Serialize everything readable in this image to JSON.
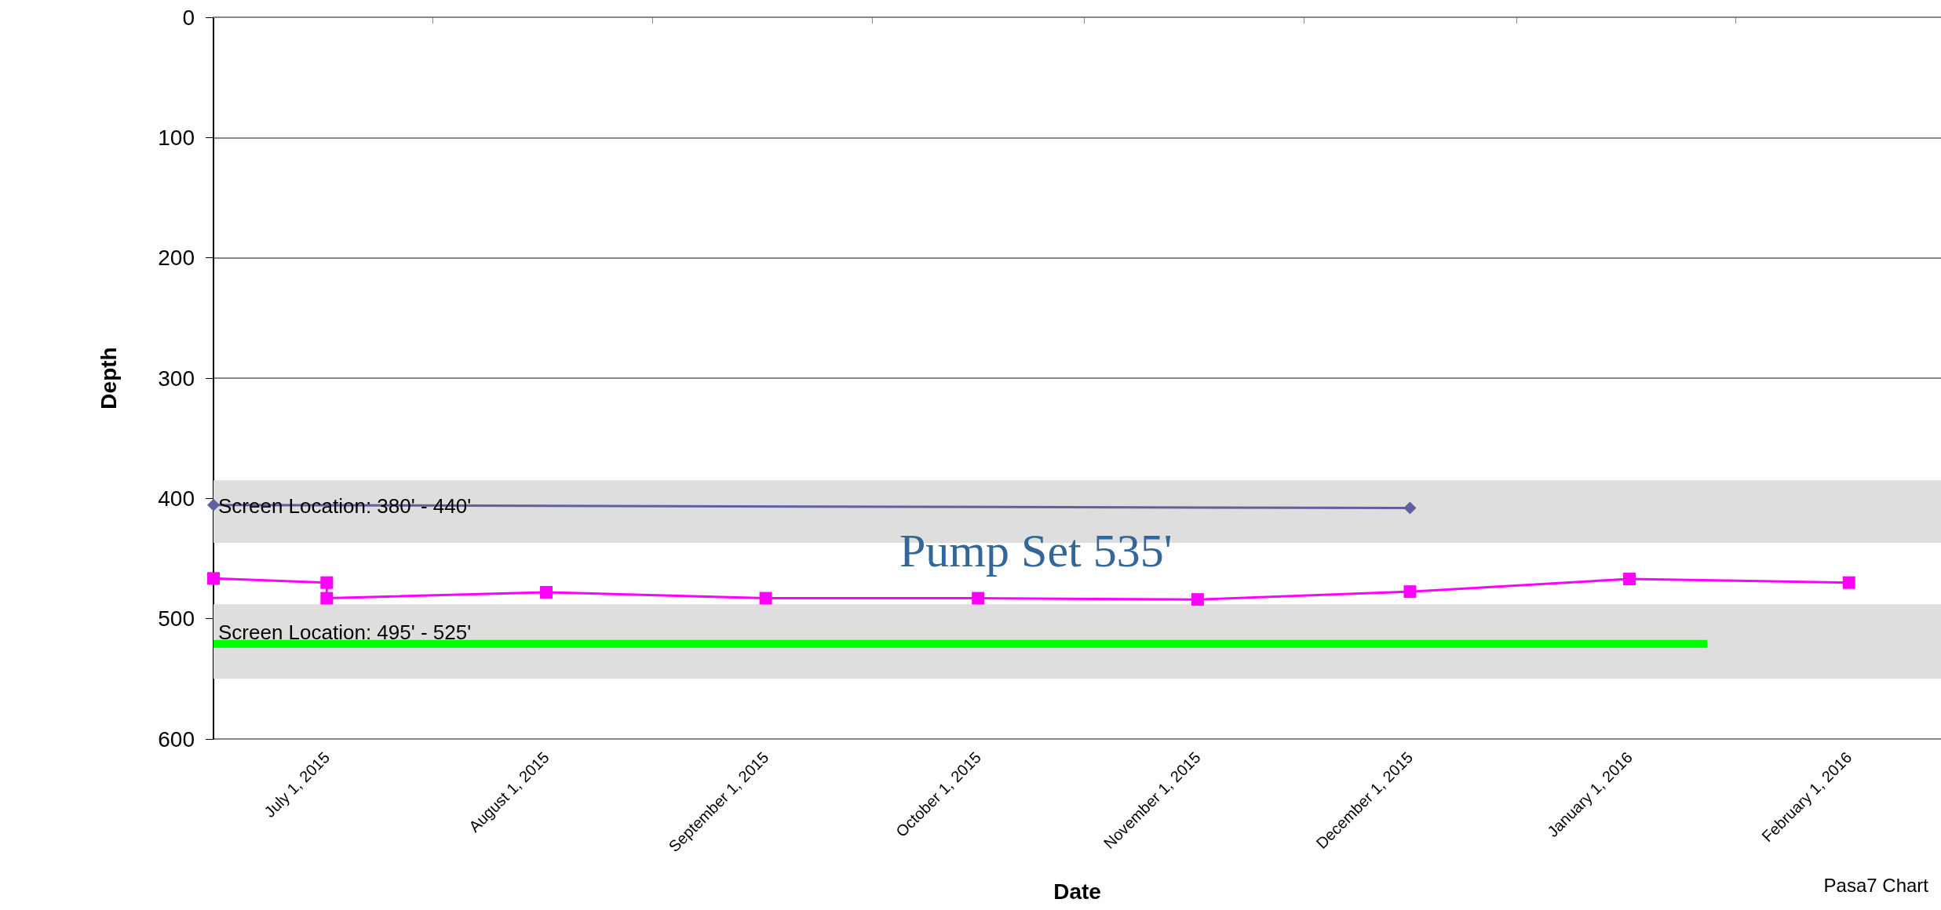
{
  "chart_data": {
    "type": "line",
    "xlabel": "Date",
    "ylabel": "Depth",
    "xlim": [
      "2015-06-15",
      "2016-02-14"
    ],
    "xticks": [
      {
        "value": "2015-07-01",
        "label": "July 1, 2015"
      },
      {
        "value": "2015-08-01",
        "label": "August 1, 2015"
      },
      {
        "value": "2015-09-01",
        "label": "September 1, 2015"
      },
      {
        "value": "2015-10-01",
        "label": "October 1, 2015"
      },
      {
        "value": "2015-11-01",
        "label": "November 1, 2015"
      },
      {
        "value": "2015-12-01",
        "label": "December 1, 2015"
      },
      {
        "value": "2016-01-01",
        "label": "January 1, 2016"
      },
      {
        "value": "2016-02-01",
        "label": "February 1, 2016"
      },
      {
        "value": "2015-07-16",
        "label": null
      },
      {
        "value": "2015-08-16",
        "label": null
      },
      {
        "value": "2015-09-16",
        "label": null
      },
      {
        "value": "2015-10-16",
        "label": null
      },
      {
        "value": "2015-11-16",
        "label": null
      },
      {
        "value": "2015-12-16",
        "label": null
      },
      {
        "value": "2016-01-16",
        "label": null
      }
    ],
    "ylim": [
      600,
      0
    ],
    "yticks": [
      0,
      100,
      200,
      300,
      400,
      500,
      600
    ],
    "grid": "y",
    "bands": [
      {
        "axis": "y",
        "from": 385,
        "to": 437,
        "label": "Screen Location: 380' - 440'",
        "color": "#dedede"
      },
      {
        "axis": "y",
        "from": 488,
        "to": 550,
        "label": "Screen Location: 495' - 525'",
        "color": "#dedede"
      }
    ],
    "series": [
      {
        "color": "#00ff00",
        "marker": "none",
        "x": [
          "2015-06-15",
          "2016-01-12"
        ],
        "values": [
          521,
          521
        ]
      },
      {
        "color": "#60609f",
        "marker": "diamond",
        "x": [
          "2015-06-15",
          "2015-12-01"
        ],
        "values": [
          405.5,
          408
        ]
      },
      {
        "color": "#ff00ff",
        "marker": "square",
        "x": [
          "2015-06-15",
          "2015-07-01",
          "2015-07-01",
          "2015-08-01",
          "2015-09-01",
          "2015-10-01",
          "2015-11-01",
          "2015-12-01",
          "2016-01-01",
          "2016-02-01"
        ],
        "values": [
          466.5,
          470,
          483,
          478,
          483,
          483,
          484,
          477.5,
          467,
          470
        ]
      }
    ],
    "annotations": [
      "Pump Set 535'",
      "Pasa7 Chart"
    ]
  }
}
